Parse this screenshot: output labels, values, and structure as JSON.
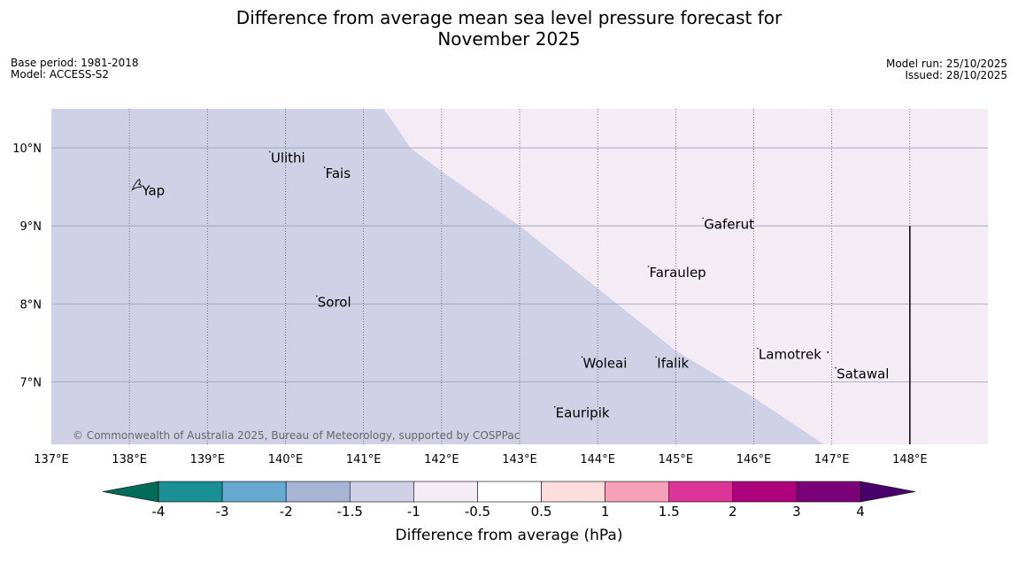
{
  "title_line1": "Difference from average mean sea level pressure forecast for",
  "title_line2": "November 2025",
  "meta_left": {
    "base_period": "Base period: 1981-2018",
    "model": "Model: ACCESS-S2"
  },
  "meta_right": {
    "model_run": "Model run: 25/10/2025",
    "issued": "Issued: 28/10/2025"
  },
  "map": {
    "lon_ticks": [
      "137°E",
      "138°E",
      "139°E",
      "140°E",
      "141°E",
      "142°E",
      "143°E",
      "144°E",
      "145°E",
      "146°E",
      "147°E",
      "148°E"
    ],
    "lon_values": [
      137,
      138,
      139,
      140,
      141,
      142,
      143,
      144,
      145,
      146,
      147,
      148
    ],
    "lat_ticks": [
      "10°N",
      "9°N",
      "8°N",
      "7°N"
    ],
    "lat_values": [
      10,
      9,
      8,
      7
    ],
    "lon_range": [
      137,
      149
    ],
    "lat_range": [
      6.2,
      10.5
    ],
    "copyright": "© Commonwealth of Australia 2025, Bureau of Meteorology, supported by COSPPac",
    "region_colors": {
      "below": "#d0d1e6",
      "near": "#f3ecf5"
    },
    "boundary": [
      [
        141.25,
        10.5
      ],
      [
        141.4,
        10.3
      ],
      [
        141.6,
        10.0
      ],
      [
        142.0,
        9.7
      ],
      [
        143.0,
        9.0
      ],
      [
        144.0,
        8.2
      ],
      [
        145.0,
        7.4
      ],
      [
        146.0,
        6.8
      ],
      [
        146.9,
        6.2
      ]
    ],
    "places": [
      {
        "name": "Ulithi",
        "lon": 139.8,
        "lat": 9.95
      },
      {
        "name": "Fais",
        "lon": 140.5,
        "lat": 9.75
      },
      {
        "name": "Yap",
        "lon": 138.15,
        "lat": 9.53
      },
      {
        "name": "Gaferut",
        "lon": 145.35,
        "lat": 9.1
      },
      {
        "name": "Faraulep",
        "lon": 144.65,
        "lat": 8.48
      },
      {
        "name": "Sorol",
        "lon": 140.4,
        "lat": 8.1
      },
      {
        "name": "Lamotrek",
        "lon": 146.05,
        "lat": 7.43
      },
      {
        "name": "Woleai",
        "lon": 143.8,
        "lat": 7.32
      },
      {
        "name": "Ifalik",
        "lon": 144.75,
        "lat": 7.32
      },
      {
        "name": "Satawal",
        "lon": 147.05,
        "lat": 7.18
      },
      {
        "name": "Eauripik",
        "lon": 143.45,
        "lat": 6.68
      }
    ]
  },
  "colorbar": {
    "title": "Difference from average (hPa)",
    "tick_labels": [
      "-4",
      "-3",
      "-2",
      "-1.5",
      "-1",
      "-0.5",
      "0.5",
      "1",
      "1.5",
      "2",
      "3",
      "4"
    ],
    "colors": [
      "#1a9096",
      "#67a9cf",
      "#a6b5d3",
      "#d0d1e6",
      "#f3ecf5",
      "#ffffff",
      "#fddddd",
      "#f7a0ba",
      "#dd3497",
      "#ae017e",
      "#7a0177"
    ],
    "under_color": "#016c59",
    "over_color": "#49006a"
  }
}
